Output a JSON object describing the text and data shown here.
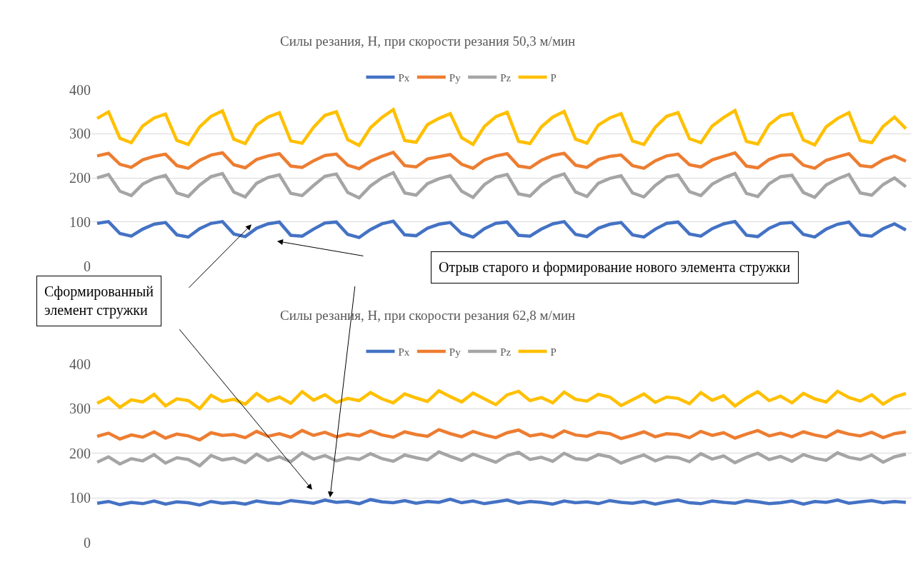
{
  "chart_data": [
    {
      "type": "line",
      "title": "Силы резания, Н, при скорости резания 50,3 м/мин",
      "categories": [
        null,
        null,
        null,
        null,
        null,
        null,
        null,
        null,
        null,
        null,
        null,
        null,
        null,
        null,
        null,
        null,
        null,
        null,
        null,
        null,
        null,
        null,
        null,
        null,
        null,
        null,
        null,
        null,
        null,
        null,
        null,
        null,
        null,
        null,
        null,
        null,
        null,
        null,
        null,
        null,
        null,
        null,
        null,
        null,
        null,
        null,
        null,
        null,
        null,
        null,
        null,
        null,
        null,
        null,
        null,
        null,
        null,
        null,
        null,
        null,
        null,
        null,
        null,
        null,
        null,
        null,
        null,
        null,
        null,
        null,
        null,
        null
      ],
      "ylim": [
        0,
        400
      ],
      "yticks": [
        0,
        100,
        200,
        300,
        400
      ],
      "grid": "y",
      "legend": "top",
      "tick_labels": "y",
      "marker": "none",
      "line_style": "solid",
      "series": [
        {
          "name": "Px",
          "color": "#4472c4",
          "values": [
            97,
            101,
            74,
            68,
            84,
            95,
            99,
            71,
            66,
            85,
            97,
            101,
            73,
            67,
            86,
            96,
            100,
            70,
            68,
            84,
            98,
            100,
            72,
            65,
            83,
            96,
            102,
            71,
            69,
            86,
            95,
            99,
            74,
            66,
            85,
            97,
            100,
            70,
            68,
            84,
            96,
            101,
            72,
            67,
            86,
            95,
            99,
            71,
            66,
            84,
            97,
            100,
            73,
            68,
            85,
            96,
            101,
            70,
            67,
            86,
            97,
            99,
            72,
            66,
            84,
            95,
            100,
            71,
            68,
            85,
            96,
            82
          ]
        },
        {
          "name": "Py",
          "color": "#ed7d31",
          "values": [
            250,
            256,
            231,
            224,
            241,
            249,
            254,
            228,
            222,
            240,
            252,
            257,
            230,
            223,
            242,
            250,
            255,
            227,
            224,
            239,
            251,
            254,
            229,
            221,
            238,
            249,
            258,
            228,
            225,
            243,
            248,
            253,
            231,
            222,
            241,
            250,
            255,
            227,
            223,
            240,
            251,
            256,
            229,
            224,
            242,
            249,
            252,
            228,
            222,
            239,
            250,
            254,
            230,
            225,
            241,
            249,
            257,
            227,
            223,
            242,
            251,
            253,
            229,
            222,
            240,
            248,
            255,
            228,
            225,
            241,
            250,
            238
          ]
        },
        {
          "name": "Pz",
          "color": "#a5a5a5",
          "values": [
            200,
            208,
            170,
            160,
            186,
            199,
            206,
            166,
            158,
            184,
            203,
            210,
            168,
            157,
            188,
            201,
            207,
            165,
            160,
            183,
            204,
            209,
            167,
            155,
            182,
            200,
            212,
            166,
            161,
            187,
            198,
            205,
            170,
            156,
            185,
            202,
            208,
            164,
            159,
            184,
            201,
            209,
            168,
            158,
            188,
            199,
            205,
            166,
            157,
            183,
            202,
            207,
            169,
            160,
            186,
            200,
            210,
            165,
            158,
            187,
            203,
            206,
            167,
            156,
            184,
            198,
            208,
            166,
            161,
            185,
            200,
            180
          ]
        },
        {
          "name": "P",
          "color": "#ffc000",
          "values": [
            335,
            350,
            290,
            280,
            318,
            336,
            345,
            285,
            276,
            316,
            340,
            352,
            288,
            278,
            320,
            338,
            348,
            284,
            279,
            315,
            342,
            350,
            287,
            274,
            314,
            337,
            355,
            285,
            281,
            321,
            335,
            346,
            291,
            276,
            317,
            339,
            349,
            283,
            278,
            316,
            338,
            351,
            288,
            279,
            320,
            336,
            346,
            284,
            276,
            315,
            340,
            348,
            289,
            280,
            318,
            337,
            353,
            283,
            277,
            321,
            341,
            346,
            286,
            275,
            316,
            335,
            348,
            285,
            280,
            317,
            338,
            312
          ]
        }
      ],
      "annotations": [
        "Сформированный элемент стружки",
        "Отрыв старого и формирование нового элемента стружки"
      ]
    },
    {
      "type": "line",
      "title": "Силы резания, Н, при скорости резания 62,8 м/мин",
      "categories": [
        null,
        null,
        null,
        null,
        null,
        null,
        null,
        null,
        null,
        null,
        null,
        null,
        null,
        null,
        null,
        null,
        null,
        null,
        null,
        null,
        null,
        null,
        null,
        null,
        null,
        null,
        null,
        null,
        null,
        null,
        null,
        null,
        null,
        null,
        null,
        null,
        null,
        null,
        null,
        null,
        null,
        null,
        null,
        null,
        null,
        null,
        null,
        null,
        null,
        null,
        null,
        null,
        null,
        null,
        null,
        null,
        null,
        null,
        null,
        null,
        null,
        null,
        null,
        null,
        null,
        null,
        null,
        null,
        null,
        null,
        null,
        null
      ],
      "ylim": [
        0,
        400
      ],
      "yticks": [
        0,
        100,
        200,
        300,
        400
      ],
      "grid": "y",
      "legend": "top",
      "tick_labels": "y",
      "marker": "none",
      "line_style": "solid",
      "series": [
        {
          "name": "Px",
          "color": "#4472c4",
          "values": [
            88,
            92,
            85,
            90,
            87,
            93,
            86,
            91,
            89,
            84,
            92,
            88,
            90,
            86,
            93,
            89,
            87,
            94,
            91,
            88,
            95,
            90,
            92,
            87,
            96,
            91,
            89,
            94,
            88,
            92,
            90,
            97,
            89,
            93,
            87,
            91,
            95,
            88,
            92,
            90,
            86,
            93,
            89,
            91,
            87,
            94,
            90,
            88,
            92,
            86,
            91,
            95,
            89,
            87,
            93,
            90,
            88,
            94,
            91,
            87,
            89,
            93,
            86,
            92,
            90,
            95,
            88,
            91,
            94,
            89,
            92,
            90
          ]
        },
        {
          "name": "Py",
          "color": "#ed7d31",
          "values": [
            238,
            245,
            232,
            241,
            236,
            248,
            234,
            243,
            239,
            230,
            246,
            240,
            242,
            235,
            249,
            238,
            244,
            236,
            251,
            240,
            247,
            237,
            243,
            239,
            250,
            241,
            236,
            248,
            242,
            238,
            253,
            244,
            237,
            249,
            241,
            235,
            246,
            252,
            239,
            243,
            236,
            250,
            241,
            238,
            247,
            244,
            233,
            240,
            248,
            237,
            244,
            242,
            235,
            249,
            240,
            246,
            234,
            243,
            251,
            239,
            245,
            237,
            248,
            241,
            236,
            250,
            243,
            239,
            247,
            235,
            244,
            248
          ]
        },
        {
          "name": "Pz",
          "color": "#a5a5a5",
          "values": [
            180,
            192,
            176,
            188,
            183,
            197,
            178,
            190,
            186,
            172,
            195,
            185,
            189,
            179,
            198,
            184,
            192,
            181,
            201,
            187,
            195,
            183,
            190,
            186,
            199,
            188,
            182,
            196,
            190,
            185,
            203,
            193,
            184,
            198,
            189,
            180,
            195,
            202,
            186,
            191,
            182,
            200,
            188,
            185,
            197,
            192,
            178,
            188,
            196,
            183,
            192,
            190,
            181,
            199,
            187,
            194,
            179,
            191,
            200,
            186,
            193,
            182,
            197,
            189,
            184,
            201,
            191,
            186,
            196,
            180,
            192,
            198
          ]
        },
        {
          "name": "P",
          "color": "#ffc000",
          "values": [
            312,
            325,
            303,
            320,
            315,
            332,
            306,
            322,
            318,
            300,
            330,
            316,
            321,
            310,
            334,
            317,
            326,
            312,
            338,
            319,
            331,
            314,
            323,
            318,
            336,
            322,
            313,
            333,
            324,
            316,
            340,
            327,
            315,
            335,
            322,
            309,
            331,
            339,
            318,
            325,
            313,
            337,
            321,
            317,
            332,
            326,
            307,
            320,
            333,
            314,
            326,
            323,
            311,
            336,
            319,
            329,
            306,
            324,
            338,
            318,
            328,
            313,
            334,
            322,
            315,
            339,
            325,
            317,
            331,
            310,
            326,
            334
          ]
        }
      ]
    }
  ]
}
